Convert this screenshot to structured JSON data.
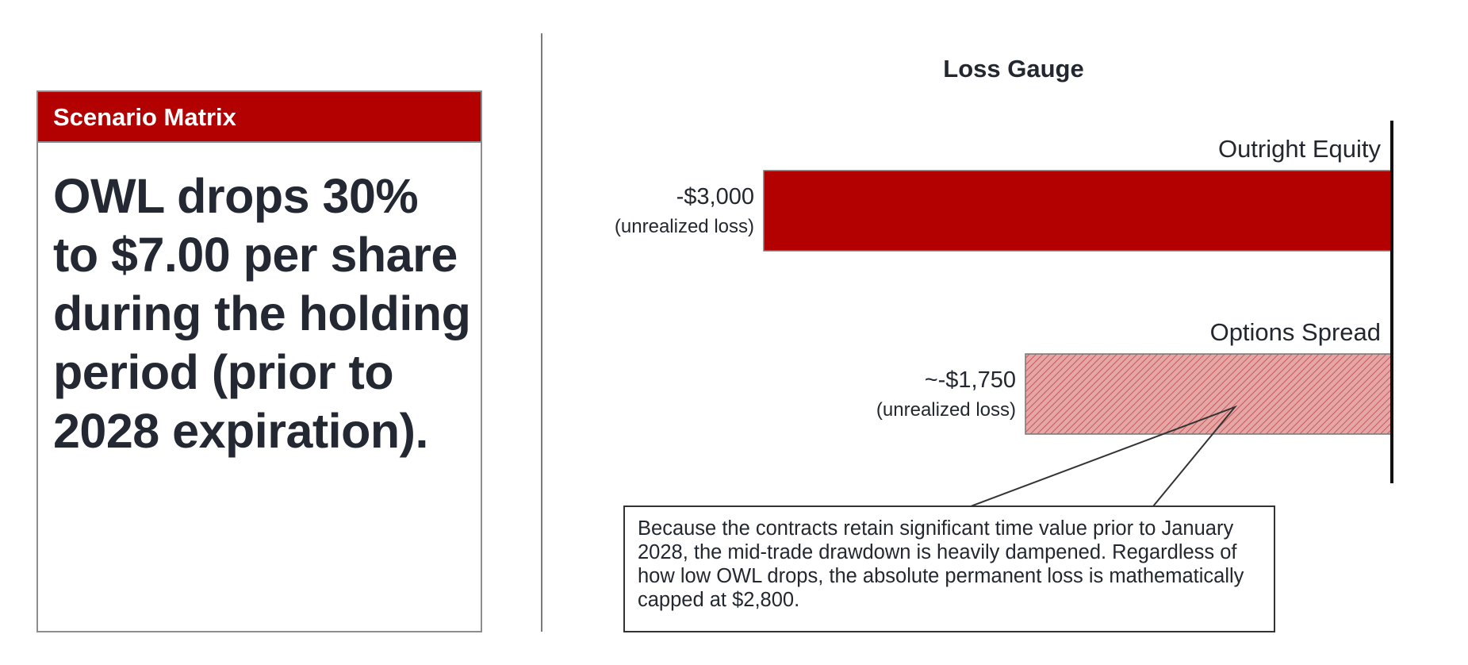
{
  "scenario": {
    "header": "Scenario Matrix",
    "text": "OWL drops 30% to $7.00 per share during the holding period (prior to 2028 expiration)."
  },
  "colors": {
    "accent_red": "#b30000",
    "spread_fill": "#d98d8d",
    "text_dark": "#23272f"
  },
  "chart_data": {
    "type": "bar",
    "orientation": "horizontal",
    "title": "Loss Gauge",
    "categories": [
      "Outright Equity",
      "Options Spread"
    ],
    "values": [
      -3000,
      -1750
    ],
    "value_labels": [
      "-$3,000",
      "~-$1,750"
    ],
    "sub_labels": [
      "(unrealized loss)",
      "(unrealized loss)"
    ],
    "bar_styles": [
      "solid",
      "hatched"
    ],
    "xlim": [
      -3000,
      0
    ],
    "grid": false,
    "legend": "none"
  },
  "callout": {
    "text": "Because the contracts retain significant time value prior to January 2028, the mid-trade drawdown is heavily dampened. Regardless of how low OWL drops, the absolute permanent loss is mathematically capped at $2,800."
  }
}
